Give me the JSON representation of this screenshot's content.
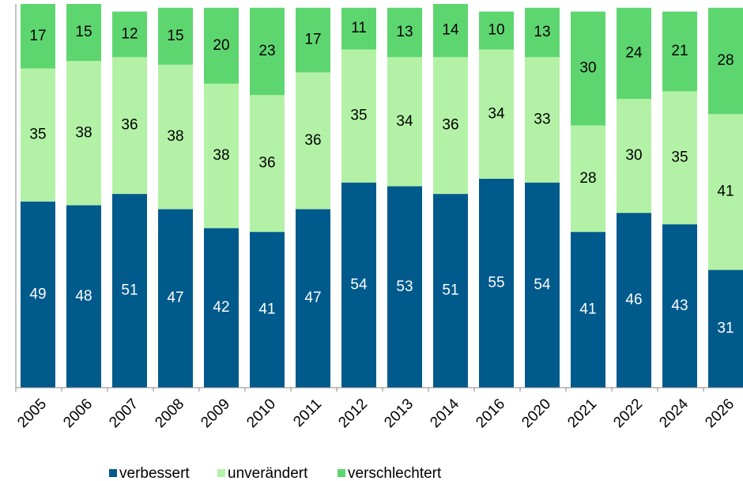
{
  "chart_data": {
    "type": "stacked_bar",
    "categories": [
      "2005",
      "2006",
      "2007",
      "2008",
      "2009",
      "2010",
      "2011",
      "2012",
      "2013",
      "2014",
      "2016",
      "2020",
      "2021",
      "2022",
      "2024",
      "2026"
    ],
    "series": [
      {
        "name": "verbessert",
        "color": "#005a8c",
        "values": [
          49,
          48,
          51,
          47,
          42,
          41,
          47,
          54,
          53,
          51,
          55,
          54,
          41,
          46,
          43,
          31
        ]
      },
      {
        "name": "unverändert",
        "color": "#b3f2a6",
        "values": [
          35,
          38,
          36,
          38,
          38,
          36,
          36,
          35,
          34,
          36,
          34,
          33,
          28,
          30,
          35,
          41
        ]
      },
      {
        "name": "verschlechtert",
        "color": "#5ed670",
        "values": [
          17,
          15,
          12,
          15,
          20,
          23,
          17,
          11,
          13,
          14,
          10,
          13,
          30,
          24,
          21,
          28
        ]
      }
    ],
    "legend": "bottom"
  }
}
